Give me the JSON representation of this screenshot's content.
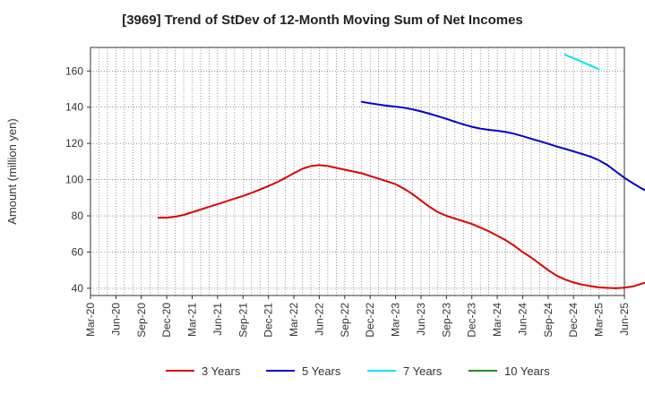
{
  "chart_data": {
    "type": "line",
    "title": "[3969]  Trend of StDev of 12-Month Moving Sum of Net Incomes",
    "ylabel": "Amount (million yen)",
    "xlabel": "",
    "ylim": [
      36,
      173
    ],
    "yticks": [
      40,
      60,
      80,
      100,
      120,
      140,
      160
    ],
    "x_tick_labels": [
      "Mar-20",
      "Jun-20",
      "Sep-20",
      "Dec-20",
      "Mar-21",
      "Jun-21",
      "Sep-21",
      "Dec-21",
      "Mar-22",
      "Jun-22",
      "Sep-22",
      "Dec-22",
      "Mar-23",
      "Jun-23",
      "Sep-23",
      "Dec-23",
      "Mar-24",
      "Jun-24",
      "Sep-24",
      "Dec-24",
      "Mar-25",
      "Jun-25"
    ],
    "grid": true,
    "legend_position": "bottom",
    "series": [
      {
        "name": "3 Years",
        "color": "#dd0000",
        "start_month": "Nov-20",
        "values": [
          79,
          79,
          79.5,
          80.5,
          82,
          83.5,
          85,
          86.5,
          88,
          89.5,
          91,
          92.7,
          94.5,
          96.5,
          98.5,
          101,
          103.5,
          106,
          107.5,
          108,
          107.5,
          106.5,
          105.5,
          104.5,
          103.5,
          102,
          100.5,
          99,
          97.5,
          95,
          92,
          88.5,
          85,
          82,
          80,
          78.5,
          77,
          75.5,
          73.5,
          71.5,
          69,
          66.5,
          63.5,
          60,
          57,
          53.5,
          50,
          47,
          44.8,
          43.2,
          42,
          41.2,
          40.5,
          40.2,
          40,
          40.3,
          41,
          42.5,
          43.8,
          44.8,
          45.3,
          45.6,
          45.8,
          45.8,
          45.6,
          45
        ]
      },
      {
        "name": "5 Years",
        "color": "#0000cc",
        "start_month": "Nov-22",
        "values": [
          143,
          142.2,
          141.5,
          140.8,
          140.3,
          139.7,
          138.8,
          137.7,
          136.4,
          135,
          133.6,
          132,
          130.5,
          129.2,
          128.2,
          127.5,
          127,
          126.3,
          125.3,
          124,
          122.6,
          121.2,
          119.8,
          118.3,
          117,
          115.6,
          114.2,
          112.7,
          110.7,
          108,
          104.5,
          101,
          98,
          95.2,
          93
        ]
      },
      {
        "name": "7 Years",
        "color": "#00e5ee",
        "start_month": "Nov-24",
        "values": [
          169,
          167,
          165,
          163,
          161
        ]
      },
      {
        "name": "10 Years",
        "color": "#228b22",
        "start_month": "",
        "values": []
      }
    ]
  }
}
